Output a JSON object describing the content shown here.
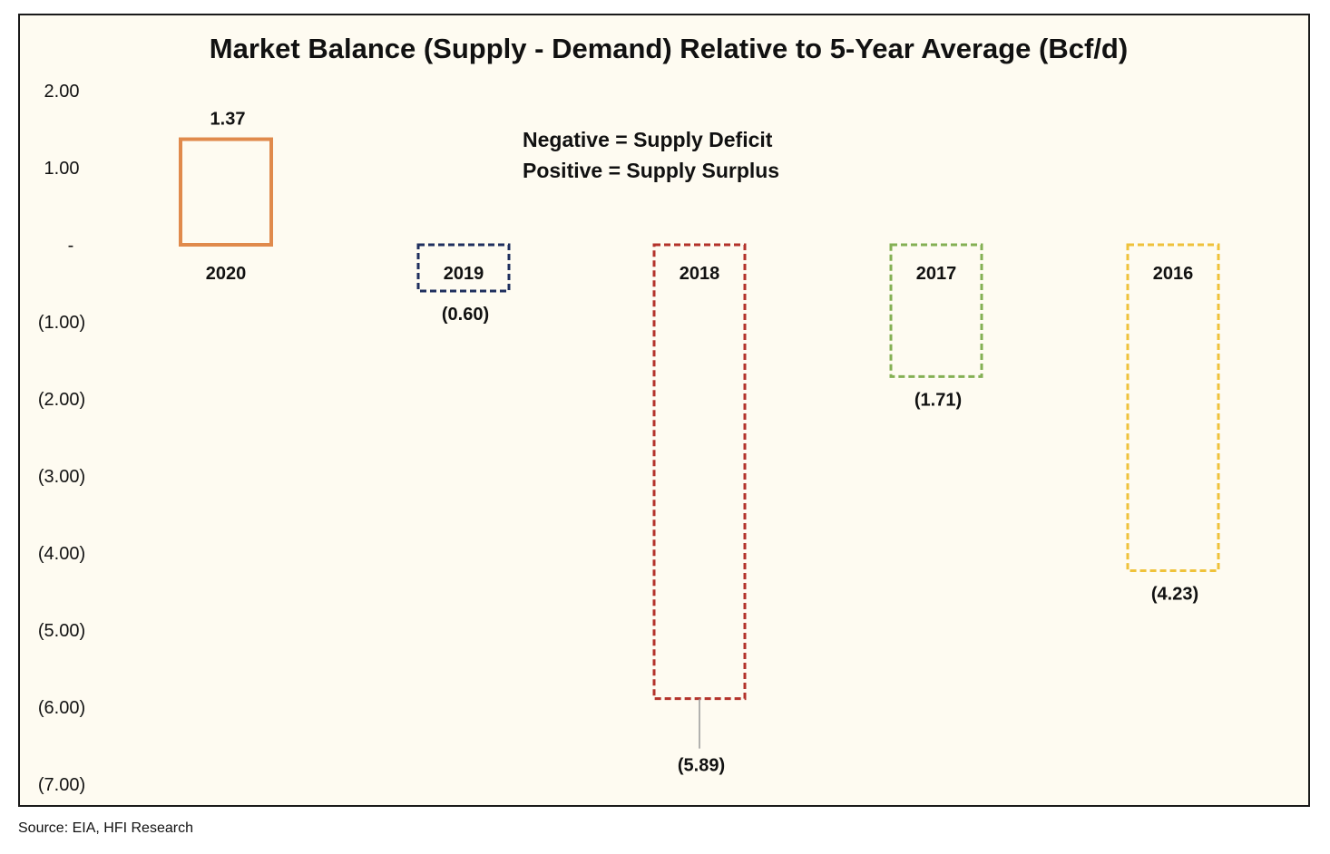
{
  "chart_data": {
    "type": "bar",
    "title": "Market Balance (Supply - Demand) Relative to 5-Year Average (Bcf/d)",
    "categories": [
      "2020",
      "2019",
      "2018",
      "2017",
      "2016"
    ],
    "values": [
      1.37,
      -0.6,
      -5.89,
      -1.71,
      -4.23
    ],
    "data_labels": [
      "1.37",
      "(0.60)",
      "(5.89)",
      "(1.71)",
      "(4.23)"
    ],
    "colors": [
      "#e08a4c",
      "#1f2f5e",
      "#b3322a",
      "#84b054",
      "#efc23a"
    ],
    "line_styles": [
      "solid",
      "dashed",
      "dashed",
      "dashed",
      "dashed"
    ],
    "ylim": [
      -7,
      2
    ],
    "y_ticks": [
      {
        "value": 2,
        "label": "2.00"
      },
      {
        "value": 1,
        "label": "1.00"
      },
      {
        "value": 0,
        "label": "-"
      },
      {
        "value": -1,
        "label": "(1.00)"
      },
      {
        "value": -2,
        "label": "(2.00)"
      },
      {
        "value": -3,
        "label": "(3.00)"
      },
      {
        "value": -4,
        "label": "(4.00)"
      },
      {
        "value": -5,
        "label": "(5.00)"
      },
      {
        "value": -6,
        "label": "(6.00)"
      },
      {
        "value": -7,
        "label": "(7.00)"
      }
    ],
    "annotations": [
      "Negative = Supply Deficit",
      "Positive = Supply Surplus"
    ],
    "grid": false,
    "legend": "none"
  },
  "source": "Source: EIA, HFI Research"
}
